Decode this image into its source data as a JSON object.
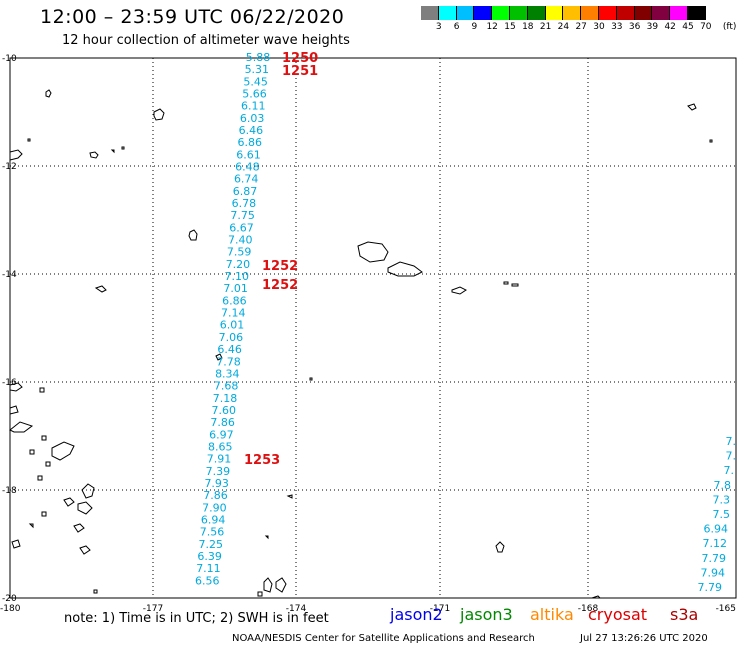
{
  "header": {
    "title": "12:00 – 23:59 UTC 06/22/2020",
    "subtitle": "12 hour collection of altimeter wave heights"
  },
  "colorbar": {
    "colors": [
      "#7f7f7f",
      "#00ffff",
      "#00bfff",
      "#0000ff",
      "#00ff00",
      "#00c000",
      "#008000",
      "#ffff00",
      "#ffbf00",
      "#ff8000",
      "#ff0000",
      "#c00000",
      "#800000",
      "#800040",
      "#ff00ff",
      "#000000"
    ],
    "labels": [
      "3",
      "6",
      "9",
      "12",
      "15",
      "18",
      "21",
      "24",
      "27",
      "30",
      "33",
      "36",
      "39",
      "42",
      "45",
      "70",
      "(ft)"
    ]
  },
  "axes": {
    "lat_labels": [
      "-10",
      "-12",
      "-14",
      "-16",
      "-18",
      "-20"
    ],
    "lon_labels": [
      "-180",
      "-177",
      "-174",
      "-171",
      "-168",
      "-165"
    ]
  },
  "track_main": {
    "swh_values": [
      "5.88",
      "5.31",
      "5.45",
      "5.66",
      "6.11",
      "6.03",
      "6.46",
      "6.86",
      "6.61",
      "6.48",
      "6.74",
      "6.87",
      "6.78",
      "7.75",
      "6.67",
      "7.40",
      "7.59",
      "7.20",
      "7.10",
      "7.01",
      "6.86",
      "7.14",
      "6.01",
      "7.06",
      "6.46",
      "7.78",
      "8.34",
      "7.68",
      "7.18",
      "7.60",
      "7.86",
      "6.97",
      "8.65",
      "7.91",
      "7.39",
      "7.93",
      "7.86",
      "7.90",
      "6.94",
      "7.56",
      "7.25",
      "6.39",
      "7.11",
      "6.56"
    ],
    "pass_times": [
      "1250",
      "1251",
      "1252",
      "1252",
      "1253"
    ]
  },
  "track_right": {
    "swh_values": [
      "7.",
      "7.",
      "7.",
      "7.8",
      "7.3",
      "7.5",
      "6.94",
      "7.12",
      "7.79",
      "7.94",
      "7.79"
    ]
  },
  "footer": {
    "note": "note: 1) Time is in UTC; 2) SWH is in feet",
    "legend": [
      {
        "label": "jason2",
        "color": "#0000ee"
      },
      {
        "label": "jason3",
        "color": "#008800"
      },
      {
        "label": "altika",
        "color": "#ff8800"
      },
      {
        "label": "cryosat",
        "color": "#dd0000"
      },
      {
        "label": "s3a",
        "color": "#aa0000"
      }
    ],
    "credit": "NOAA/NESDIS Center for Satellite Applications and Research",
    "timestamp": "Jul 27 13:26:26 UTC 2020"
  }
}
